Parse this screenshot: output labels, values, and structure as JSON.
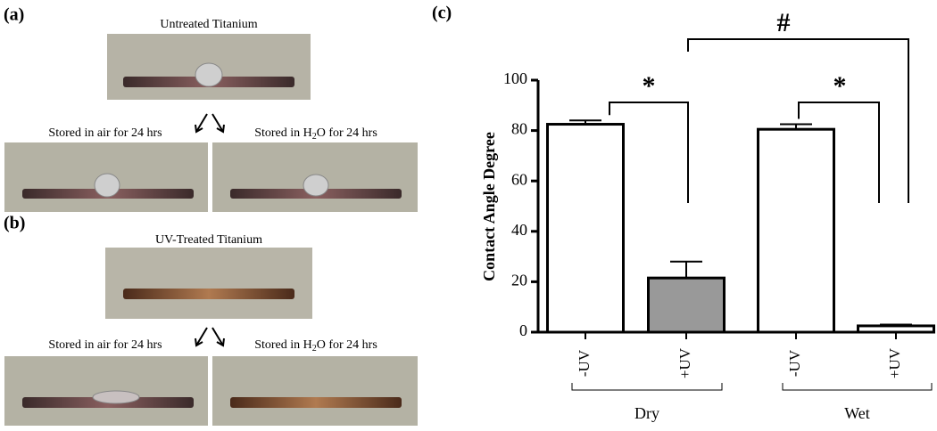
{
  "panels": {
    "a": {
      "label": "(a)",
      "title": "Untreated Titanium",
      "left": "Stored in air for 24 hrs",
      "right": [
        "Stored in H",
        "2",
        "O for 24 hrs"
      ]
    },
    "b": {
      "label": "(b)",
      "title": "UV-Treated Titanium",
      "left": "Stored in air for 24 hrs",
      "right": [
        "Stored in H",
        "2",
        "O for 24 hrs"
      ]
    }
  },
  "chart_data": {
    "type": "bar",
    "label": "(c)",
    "y_label": "Contact Angle Degree",
    "categories": [
      "-UV",
      "+UV",
      "-UV",
      "+UV"
    ],
    "groups": [
      "Dry",
      "Wet"
    ],
    "values": [
      82.5,
      21.5,
      80.5,
      2.5
    ],
    "errors": [
      1.5,
      6.5,
      2,
      0.5
    ],
    "colors": [
      "#ffffff",
      "#999999",
      "#ffffff",
      "#ffffff"
    ],
    "ylim": [
      0,
      100
    ],
    "yticks": [
      0,
      20,
      40,
      60,
      80,
      100
    ],
    "annotations": [
      "*",
      "*",
      "#"
    ]
  }
}
